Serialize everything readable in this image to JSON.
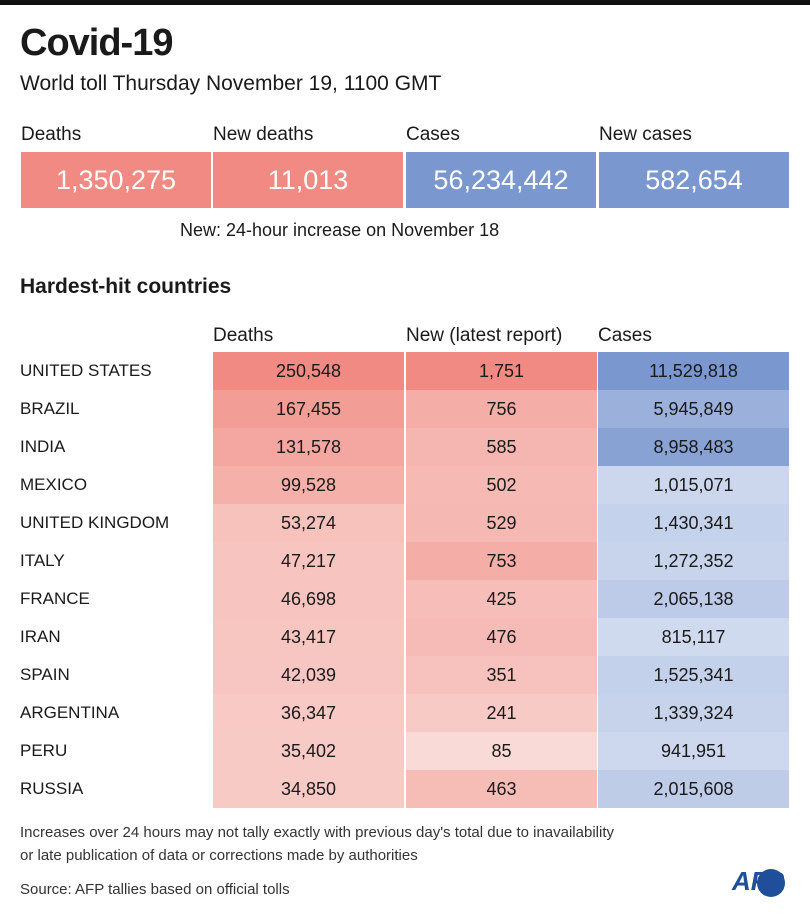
{
  "header": {
    "title": "Covid-19",
    "subtitle": "World toll Thursday November 19, 1100 GMT"
  },
  "summary": [
    {
      "label": "Deaths",
      "value": "1,350,275"
    },
    {
      "label": "New deaths",
      "value": "11,013"
    },
    {
      "label": "Cases",
      "value": "56,234,442"
    },
    {
      "label": "New cases",
      "value": "582,654"
    }
  ],
  "note": "New: 24-hour increase on November 18",
  "section_title": "Hardest-hit countries",
  "table": {
    "columns": [
      "Deaths",
      "New (latest report)",
      "Cases"
    ],
    "rows": [
      [
        "UNITED STATES",
        "250,548",
        "1,751",
        "11,529,818"
      ],
      [
        "BRAZIL",
        "167,455",
        "756",
        "5,945,849"
      ],
      [
        "INDIA",
        "131,578",
        "585",
        "8,958,483"
      ],
      [
        "MEXICO",
        "99,528",
        "502",
        "1,015,071"
      ],
      [
        "UNITED KINGDOM",
        "53,274",
        "529",
        "1,430,341"
      ],
      [
        "ITALY",
        "47,217",
        "753",
        "1,272,352"
      ],
      [
        "FRANCE",
        "46,698",
        "425",
        "2,065,138"
      ],
      [
        "IRAN",
        "43,417",
        "476",
        "815,117"
      ],
      [
        "SPAIN",
        "42,039",
        "351",
        "1,525,341"
      ],
      [
        "ARGENTINA",
        "36,347",
        "241",
        "1,339,324"
      ],
      [
        "PERU",
        "35,402",
        "85",
        "941,951"
      ],
      [
        "RUSSIA",
        "34,850",
        "463",
        "2,015,608"
      ]
    ]
  },
  "footnote": [
    "Increases over 24 hours may not tally exactly with previous day's total due to inavailability",
    "or late publication of data or corrections made by authorities"
  ],
  "source": "Source: AFP tallies based on official tolls",
  "logo": "AFP"
}
